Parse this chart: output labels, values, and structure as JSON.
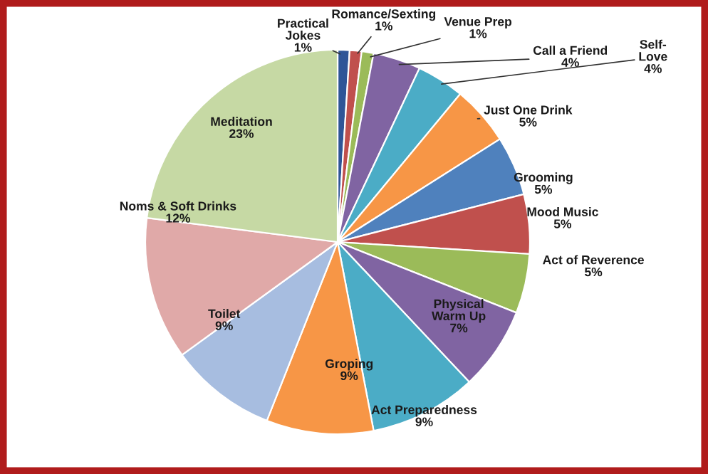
{
  "chart_data": {
    "type": "pie",
    "categories": [
      "Practical Jokes",
      "Romance/Sexting",
      "Venue Prep",
      "Call a Friend",
      "Self-Love",
      "Just One Drink",
      "Grooming",
      "Mood Music",
      "Act of Reverence",
      "Physical Warm Up",
      "Act Preparedness",
      "Groping",
      "Toilet",
      "Noms & Soft Drinks",
      "Meditation"
    ],
    "values": [
      1,
      1,
      1,
      4,
      4,
      5,
      5,
      5,
      5,
      7,
      9,
      9,
      9,
      12,
      23
    ],
    "colors": [
      "#2f5597",
      "#c0504d",
      "#9bbb59",
      "#8064a2",
      "#4bacc6",
      "#f79646",
      "#4f81bd",
      "#c0504d",
      "#9bbb59",
      "#8064a2",
      "#4bacc6",
      "#f79646",
      "#a7bde0",
      "#e0a9a8",
      "#c6d9a4"
    ],
    "value_labels": [
      "1%",
      "1%",
      "1%",
      "4%",
      "4%",
      "5%",
      "5%",
      "5%",
      "5%",
      "7%",
      "9%",
      "9%",
      "9%",
      "12%",
      "23%"
    ]
  }
}
